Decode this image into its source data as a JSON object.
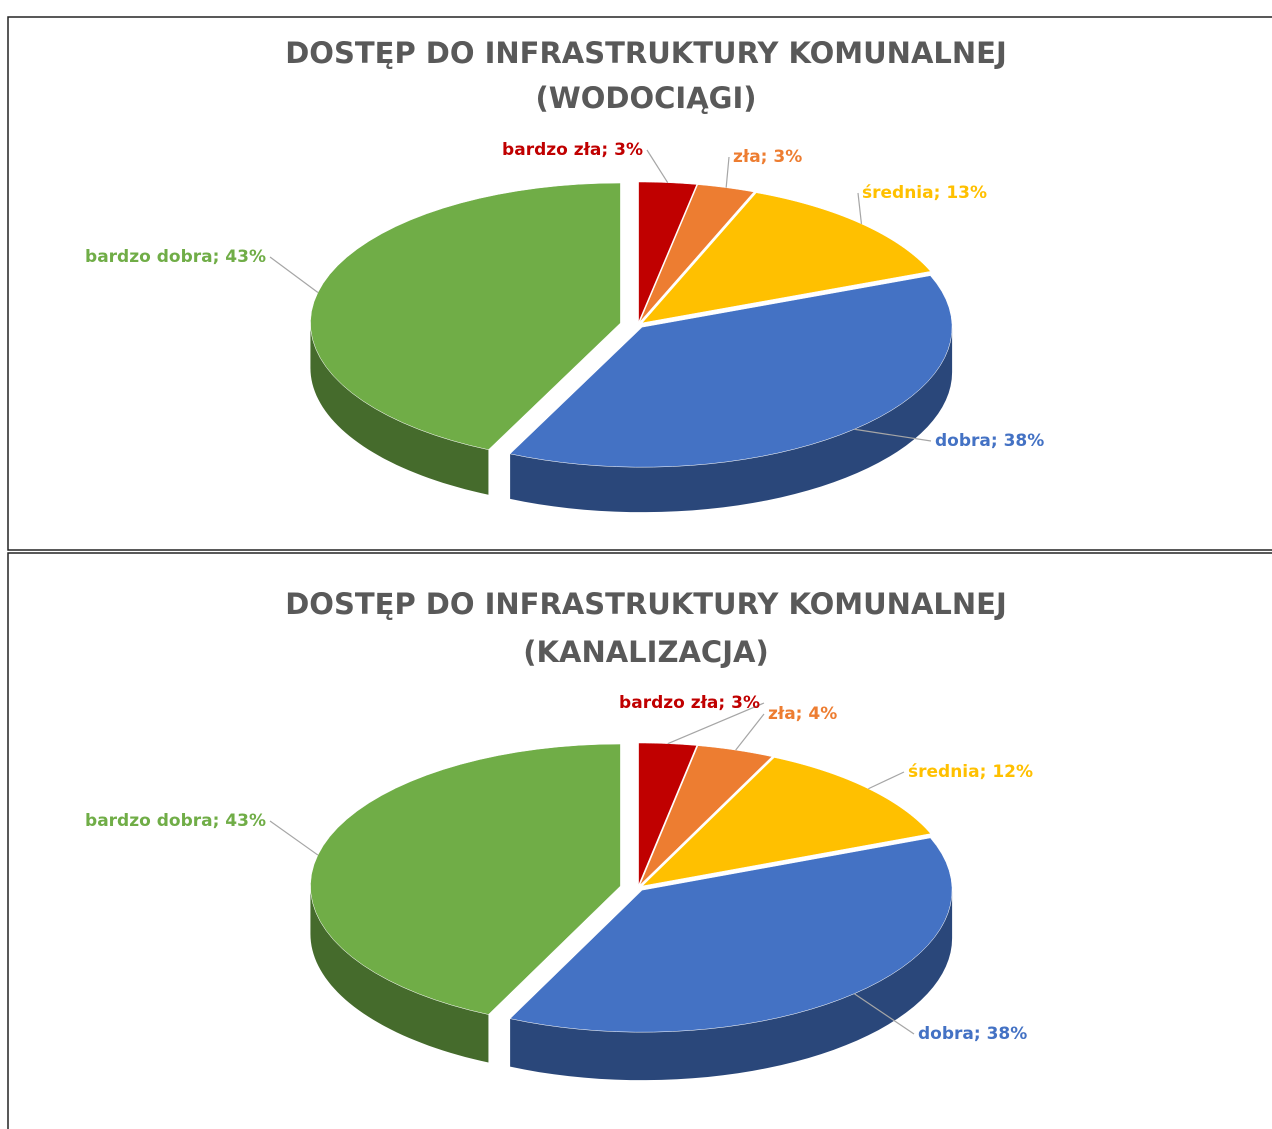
{
  "chart_data": [
    {
      "type": "pie3d",
      "title": "DOSTĘP DO INFRASTRUKTURY KOMUNALNEJ",
      "subtitle": "(WODOCIĄGI)",
      "values": [
        3,
        3,
        13,
        38,
        43
      ],
      "value_labels": [
        "bardzo zła; 3%",
        "zła; 3%",
        "średnia; 13%",
        "dobra; 38%",
        "bardzo dobra; 43%"
      ],
      "colors": [
        "#c00000",
        "#ed7d31",
        "#ffc000",
        "#4472c4",
        "#70ad47"
      ]
    },
    {
      "type": "pie3d",
      "title": "DOSTĘP DO INFRASTRUKTURY KOMUNALNEJ",
      "subtitle": "(KANALIZACJA)",
      "values": [
        3,
        4,
        12,
        38,
        43
      ],
      "value_labels": [
        "bardzo zła; 3%",
        "zła; 4%",
        "średnia; 12%",
        "dobra; 38%",
        "bardzo dobra; 43%"
      ],
      "colors": [
        "#c00000",
        "#ed7d31",
        "#ffc000",
        "#4472c4",
        "#70ad47"
      ]
    }
  ]
}
